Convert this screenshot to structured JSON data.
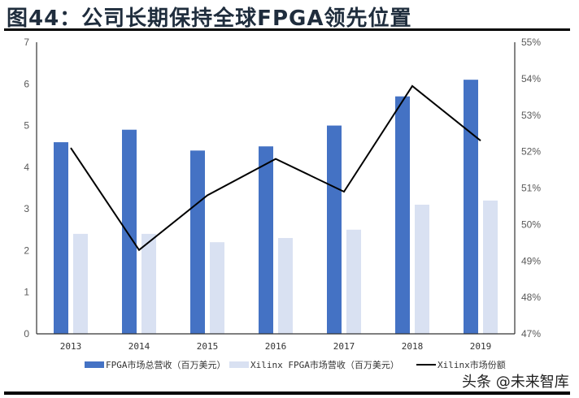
{
  "header": {
    "title": "图44：公司长期保持全球FPGA领先位置"
  },
  "legend": {
    "items": [
      {
        "label": "FPGA市场总营收（百万美元）",
        "color": "#4472C4",
        "type": "bar"
      },
      {
        "label": "Xilinx FPGA市场营收（百万美元）",
        "color": "#D9E1F2",
        "type": "bar"
      },
      {
        "label": "Xilinx市场份额",
        "color": "#000000",
        "type": "line"
      }
    ]
  },
  "watermark": "头条 @未来智库",
  "axes": {
    "left_ticks": [
      "0",
      "1",
      "2",
      "3",
      "4",
      "5",
      "6",
      "7"
    ],
    "right_ticks": [
      "47%",
      "48%",
      "49%",
      "50%",
      "51%",
      "52%",
      "53%",
      "54%",
      "55%"
    ],
    "x_ticks": [
      "2013",
      "2014",
      "2015",
      "2016",
      "2017",
      "2018",
      "2019"
    ]
  },
  "chart_data": {
    "type": "bar",
    "title": "图44：公司长期保持全球FPGA领先位置",
    "categories": [
      "2013",
      "2014",
      "2015",
      "2016",
      "2017",
      "2018",
      "2019"
    ],
    "series": [
      {
        "name": "FPGA市场总营收（百万美元）",
        "type": "bar",
        "axis": "left",
        "color": "#4472C4",
        "values": [
          4.6,
          4.9,
          4.4,
          4.5,
          5.0,
          5.7,
          6.1
        ]
      },
      {
        "name": "Xilinx FPGA市场营收（百万美元）",
        "type": "bar",
        "axis": "left",
        "color": "#D9E1F2",
        "values": [
          2.4,
          2.4,
          2.2,
          2.3,
          2.5,
          3.1,
          3.2
        ]
      },
      {
        "name": "Xilinx市场份额",
        "type": "line",
        "axis": "right",
        "color": "#000000",
        "values": [
          52.1,
          49.3,
          50.8,
          51.8,
          50.9,
          53.8,
          52.3
        ],
        "unit": "%"
      }
    ],
    "xlabel": "",
    "ylabel": "",
    "ylim": [
      0,
      7
    ],
    "y2lim": [
      47,
      55
    ],
    "grid": false,
    "legend_position": "bottom"
  }
}
